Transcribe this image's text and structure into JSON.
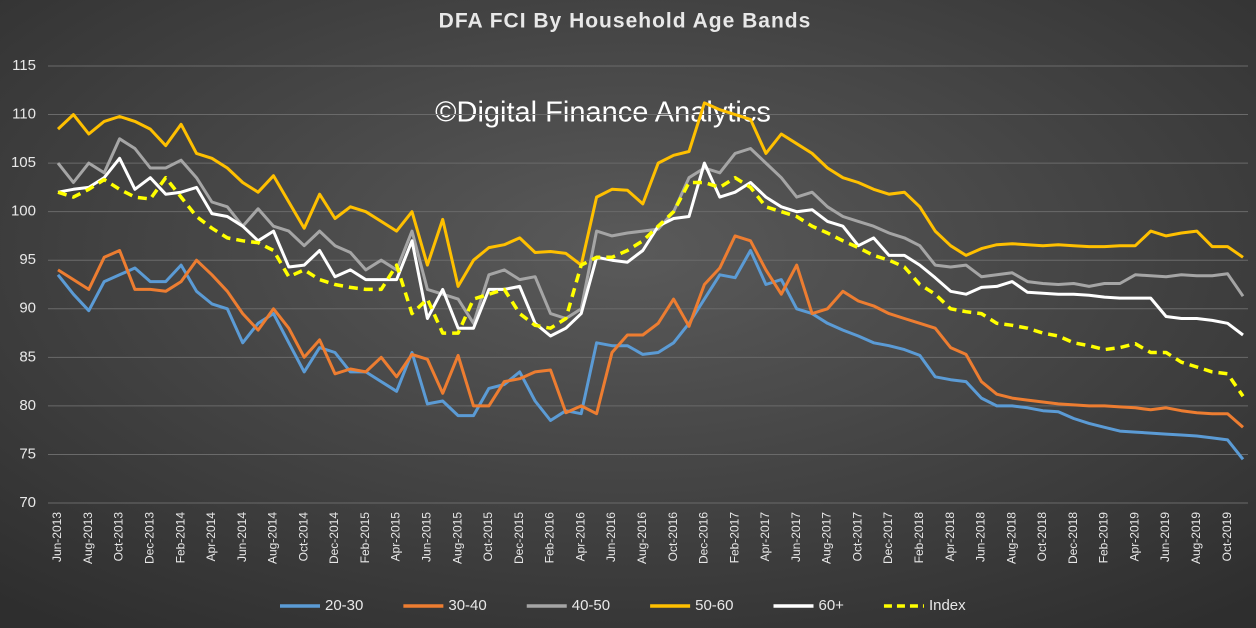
{
  "chart_data": {
    "type": "line",
    "title": "DFA FCI By Household Age Bands",
    "annotation": "©Digital Finance Analytics",
    "categories": [
      "Jun-2013",
      null,
      "Aug-2013",
      null,
      "Oct-2013",
      null,
      "Dec-2013",
      null,
      "Feb-2014",
      null,
      "Apr-2014",
      null,
      "Jun-2014",
      null,
      "Aug-2014",
      null,
      "Oct-2014",
      null,
      "Dec-2014",
      null,
      "Feb-2015",
      null,
      "Apr-2015",
      null,
      "Jun-2015",
      null,
      "Aug-2015",
      null,
      "Oct-2015",
      null,
      "Dec-2015",
      null,
      "Feb-2016",
      null,
      "Apr-2016",
      null,
      "Jun-2016",
      null,
      "Aug-2016",
      null,
      "Oct-2016",
      null,
      "Dec-2016",
      null,
      "Feb-2017",
      null,
      "Apr-2017",
      null,
      "Jun-2017",
      null,
      "Aug-2017",
      null,
      "Oct-2017",
      null,
      "Dec-2017",
      null,
      "Feb-2018",
      null,
      "Apr-2018",
      null,
      "Jun-2018",
      null,
      "Aug-2018",
      null,
      "Oct-2018",
      null,
      "Dec-2018",
      null,
      "Feb-2019",
      null,
      "Apr-2019",
      null,
      "Jun-2019",
      null,
      "Aug-2019",
      null,
      "Oct-2019",
      null
    ],
    "series": [
      {
        "name": "20-30",
        "color": "#5b9bd5",
        "dashed": false,
        "values": [
          93.5,
          91.5,
          89.8,
          92.8,
          93.5,
          94.2,
          92.8,
          92.8,
          94.5,
          91.8,
          90.5,
          90,
          86.5,
          88.5,
          89.5,
          86.5,
          83.5,
          86,
          85.5,
          83.5,
          83.5,
          82.5,
          81.5,
          85.5,
          80.2,
          80.5,
          79,
          79,
          81.8,
          82.2,
          83.5,
          80.5,
          78.5,
          79.5,
          79.2,
          86.5,
          86.2,
          86.2,
          85.3,
          85.5,
          86.5,
          88.5,
          91,
          93.5,
          93.2,
          96,
          92.5,
          93,
          90,
          89.5,
          88.5,
          87.8,
          87.2,
          86.5,
          86.2,
          85.8,
          85.2,
          83,
          82.7,
          82.5,
          80.8,
          80,
          80,
          79.8,
          79.5,
          79.4,
          78.7,
          78.2,
          77.8,
          77.4,
          77.3,
          77.2,
          77.1,
          77.0,
          76.9,
          76.7,
          76.5,
          74.5
        ]
      },
      {
        "name": "30-40",
        "color": "#ed7d31",
        "dashed": false,
        "values": [
          94,
          93,
          92,
          95.3,
          96,
          92,
          92,
          91.8,
          92.8,
          95,
          93.5,
          91.8,
          89.5,
          87.8,
          90,
          88,
          85,
          86.8,
          83.3,
          83.8,
          83.5,
          85,
          83,
          85.3,
          84.8,
          81.3,
          85.2,
          80,
          80,
          82.5,
          82.8,
          83.5,
          83.7,
          79.3,
          80,
          79.2,
          85.5,
          87.3,
          87.3,
          88.5,
          91,
          88.2,
          92.5,
          94.2,
          97.5,
          97,
          94,
          91.5,
          94.5,
          89.5,
          90,
          91.8,
          90.8,
          90.3,
          89.5,
          89,
          88.5,
          88,
          86,
          85.3,
          82.5,
          81.2,
          80.8,
          80.6,
          80.4,
          80.2,
          80.1,
          80,
          80,
          79.9,
          79.8,
          79.6,
          79.8,
          79.5,
          79.3,
          79.2,
          79.2,
          77.8
        ]
      },
      {
        "name": "40-50",
        "color": "#a5a5a5",
        "dashed": false,
        "values": [
          105,
          103,
          105,
          104,
          107.5,
          106.5,
          104.5,
          104.5,
          105.3,
          103.5,
          101,
          100.5,
          98.5,
          100.3,
          98.5,
          98,
          96.5,
          98,
          96.5,
          95.8,
          94,
          95,
          94,
          98,
          92,
          91.5,
          91,
          88.5,
          93.5,
          94,
          93,
          93.3,
          89.5,
          89,
          90,
          98,
          97.5,
          97.8,
          98,
          98.2,
          100,
          103.5,
          104.5,
          104,
          106,
          106.5,
          105,
          103.5,
          101.5,
          102,
          100.5,
          99.5,
          99,
          98.5,
          97.8,
          97.3,
          96.5,
          94.5,
          94.3,
          94.5,
          93.3,
          93.5,
          93.7,
          92.8,
          92.6,
          92.5,
          92.6,
          92.3,
          92.6,
          92.6,
          93.5,
          93.4,
          93.3,
          93.5,
          93.4,
          93.4,
          93.6,
          91.3
        ]
      },
      {
        "name": "50-60",
        "color": "#ffc000",
        "dashed": false,
        "values": [
          108.5,
          110,
          108,
          109.3,
          109.8,
          109.3,
          108.5,
          106.8,
          109,
          106,
          105.5,
          104.5,
          103,
          102,
          103.7,
          101,
          98.3,
          101.8,
          99.3,
          100.5,
          100,
          99,
          98,
          100,
          94.5,
          99.2,
          92.3,
          95,
          96.3,
          96.6,
          97.3,
          95.8,
          95.9,
          95.7,
          94.5,
          101.5,
          102.3,
          102.2,
          100.8,
          105,
          105.8,
          106.2,
          111.2,
          110.5,
          110,
          109.5,
          106,
          108,
          107,
          106,
          104.5,
          103.5,
          103,
          102.3,
          101.8,
          102,
          100.5,
          98,
          96.5,
          95.5,
          96.2,
          96.6,
          96.7,
          96.6,
          96.5,
          96.6,
          96.5,
          96.4,
          96.4,
          96.5,
          96.5,
          98,
          97.5,
          97.8,
          98,
          96.4,
          96.4,
          95.3
        ]
      },
      {
        "name": "60+",
        "color": "#ffffff",
        "dashed": false,
        "values": [
          102,
          102.3,
          102.5,
          103.5,
          105.5,
          102.3,
          103.5,
          101.8,
          102,
          102.5,
          99.8,
          99.5,
          98.5,
          97,
          98,
          94.3,
          94.5,
          96,
          93.3,
          94,
          93,
          93,
          93,
          97,
          89,
          92,
          88,
          88,
          92,
          92,
          92.3,
          88.5,
          87.2,
          88,
          89.5,
          95.3,
          95,
          94.8,
          96,
          98.5,
          99.3,
          99.5,
          105,
          101.5,
          102,
          103,
          101.5,
          100.5,
          100,
          100.2,
          99,
          98.5,
          96.5,
          97.3,
          95.5,
          95.5,
          94.5,
          93.2,
          91.8,
          91.5,
          92.2,
          92.3,
          92.8,
          91.7,
          91.6,
          91.5,
          91.5,
          91.4,
          91.2,
          91.1,
          91.1,
          91.1,
          89.2,
          89,
          89,
          88.8,
          88.5,
          87.3
        ]
      },
      {
        "name": "Index",
        "color": "#ffff00",
        "dashed": true,
        "values": [
          102,
          101.5,
          102.3,
          103.3,
          102.3,
          101.5,
          101.3,
          103.5,
          101.5,
          99.5,
          98.3,
          97.3,
          97,
          96.8,
          96,
          93.3,
          94,
          93,
          92.5,
          92.2,
          92,
          92,
          94.5,
          89.5,
          91,
          87.5,
          87.5,
          91,
          91.5,
          92,
          89.5,
          88.3,
          88,
          89,
          94.5,
          95.3,
          95.3,
          96,
          97,
          98.5,
          100,
          103,
          103,
          102.5,
          103.5,
          102.5,
          100.5,
          100,
          99.5,
          98.5,
          97.8,
          97,
          96.3,
          95.5,
          95,
          94.3,
          92.5,
          91.5,
          90,
          89.7,
          89.5,
          88.5,
          88.3,
          88,
          87.5,
          87.2,
          86.5,
          86.2,
          85.8,
          86,
          86.4,
          85.5,
          85.5,
          84.5,
          84,
          83.5,
          83.3,
          81
        ]
      }
    ],
    "ylim": [
      70,
      115
    ],
    "yticks": [
      70,
      75,
      80,
      85,
      90,
      95,
      100,
      105,
      110,
      115
    ],
    "grid": true,
    "legend": "bottom"
  }
}
